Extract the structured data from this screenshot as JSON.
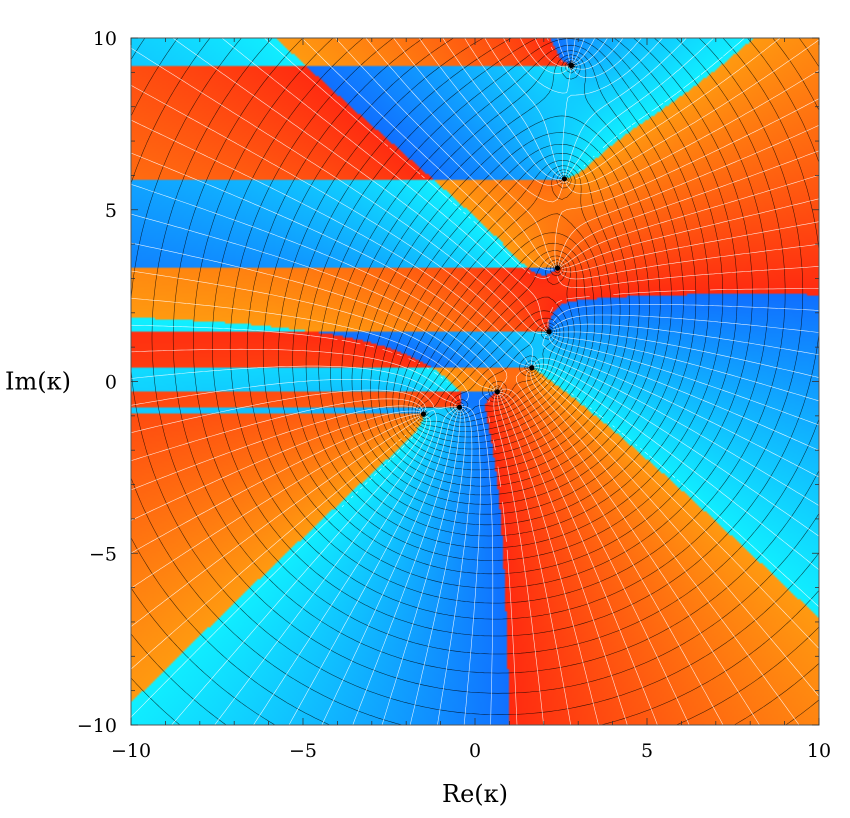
{
  "chart_data": {
    "type": "heatmap",
    "title": "",
    "xlabel": "Re(κ)",
    "ylabel": "Im(κ)",
    "xlim": [
      -10,
      10
    ],
    "ylim": [
      -10,
      10
    ],
    "x_ticks": [
      -10,
      -5,
      0,
      5,
      10
    ],
    "y_ticks": [
      -10,
      -5,
      0,
      5,
      10
    ],
    "x_tick_labels": [
      "−10",
      "−5",
      "0",
      "5",
      "10"
    ],
    "y_tick_labels": [
      "−10",
      "−5",
      "0",
      "5",
      "10"
    ],
    "color_scheme": "phase (argument) coloring, cyclic red → orange → cyan → blue",
    "colors": {
      "red": "#ff2a10",
      "orange": "#ff9a10",
      "cyan": "#10f0ff",
      "blue": "#1070ff",
      "modulus_contours": "#000000",
      "phase_contours": "#ffffff"
    },
    "marked_points": [
      {
        "x": -1.5,
        "y": -0.95
      },
      {
        "x": -0.45,
        "y": -0.75
      },
      {
        "x": 0.65,
        "y": -0.3
      },
      {
        "x": 1.65,
        "y": 0.4
      },
      {
        "x": 2.15,
        "y": 1.45
      },
      {
        "x": 2.4,
        "y": 3.3
      },
      {
        "x": 2.6,
        "y": 5.9
      },
      {
        "x": 2.8,
        "y": 9.2
      }
    ]
  }
}
